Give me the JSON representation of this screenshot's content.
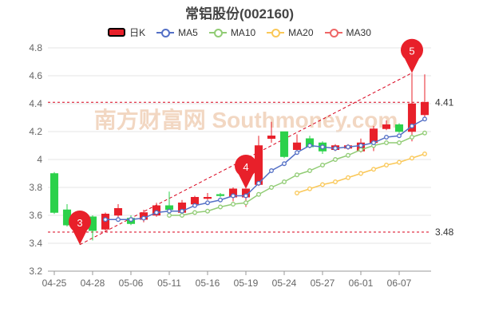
{
  "title": "常铝股份(002160)",
  "chart_data": {
    "type": "candlestick",
    "title": "常铝股份(002160)",
    "legend": [
      {
        "label": "日K",
        "color": "#e8202a"
      },
      {
        "label": "MA5",
        "color": "#5470c6"
      },
      {
        "label": "MA10",
        "color": "#91cc75"
      },
      {
        "label": "MA20",
        "color": "#fac858"
      },
      {
        "label": "MA30",
        "color": "#ee6666"
      }
    ],
    "up_color": "#e8202a",
    "down_color": "#2bd14a",
    "ylim": [
      3.2,
      4.8
    ],
    "yticks": [
      3.2,
      3.4,
      3.6,
      3.8,
      4,
      4.2,
      4.4,
      4.6,
      4.8
    ],
    "xtick_labels": [
      {
        "i": 0,
        "label": "04-25"
      },
      {
        "i": 3,
        "label": "04-28"
      },
      {
        "i": 6,
        "label": "05-06"
      },
      {
        "i": 9,
        "label": "05-11"
      },
      {
        "i": 12,
        "label": "05-16"
      },
      {
        "i": 15,
        "label": "05-19"
      },
      {
        "i": 18,
        "label": "05-24"
      },
      {
        "i": 21,
        "label": "05-27"
      },
      {
        "i": 24,
        "label": "06-01"
      },
      {
        "i": 27,
        "label": "06-07"
      }
    ],
    "candles": [
      {
        "o": 3.9,
        "c": 3.62,
        "h": 3.91,
        "l": 3.61
      },
      {
        "o": 3.64,
        "c": 3.53,
        "h": 3.68,
        "l": 3.52
      },
      {
        "o": 3.56,
        "c": 3.52,
        "h": 3.61,
        "l": 3.39
      },
      {
        "o": 3.59,
        "c": 3.49,
        "h": 3.6,
        "l": 3.42
      },
      {
        "o": 3.5,
        "c": 3.61,
        "h": 3.62,
        "l": 3.49
      },
      {
        "o": 3.6,
        "c": 3.65,
        "h": 3.68,
        "l": 3.58
      },
      {
        "o": 3.58,
        "c": 3.54,
        "h": 3.6,
        "l": 3.53
      },
      {
        "o": 3.57,
        "c": 3.62,
        "h": 3.64,
        "l": 3.55
      },
      {
        "o": 3.6,
        "c": 3.67,
        "h": 3.69,
        "l": 3.59
      },
      {
        "o": 3.67,
        "c": 3.64,
        "h": 3.77,
        "l": 3.63
      },
      {
        "o": 3.62,
        "c": 3.69,
        "h": 3.71,
        "l": 3.61
      },
      {
        "o": 3.68,
        "c": 3.73,
        "h": 3.74,
        "l": 3.67
      },
      {
        "o": 3.72,
        "c": 3.73,
        "h": 3.76,
        "l": 3.71
      },
      {
        "o": 3.75,
        "c": 3.74,
        "h": 3.76,
        "l": 3.73
      },
      {
        "o": 3.73,
        "c": 3.79,
        "h": 3.8,
        "l": 3.7
      },
      {
        "o": 3.73,
        "c": 3.79,
        "h": 3.79,
        "l": 3.66
      },
      {
        "o": 3.82,
        "c": 4.1,
        "h": 4.17,
        "l": 3.81
      },
      {
        "o": 4.15,
        "c": 4.17,
        "h": 4.27,
        "l": 4.12
      },
      {
        "o": 4.2,
        "c": 4.02,
        "h": 4.2,
        "l": 4.01
      },
      {
        "o": 4.07,
        "c": 4.12,
        "h": 4.18,
        "l": 4.06
      },
      {
        "o": 4.15,
        "c": 4.09,
        "h": 4.17,
        "l": 4.08
      },
      {
        "o": 4.12,
        "c": 4.06,
        "h": 4.13,
        "l": 4.04
      },
      {
        "o": 4.07,
        "c": 4.1,
        "h": 4.11,
        "l": 4.06
      },
      {
        "o": 4.08,
        "c": 4.1,
        "h": 4.11,
        "l": 4.07
      },
      {
        "o": 4.06,
        "c": 4.12,
        "h": 4.15,
        "l": 4.05
      },
      {
        "o": 4.12,
        "c": 4.22,
        "h": 4.24,
        "l": 4.06
      },
      {
        "o": 4.22,
        "c": 4.25,
        "h": 4.28,
        "l": 4.21
      },
      {
        "o": 4.25,
        "c": 4.2,
        "h": 4.26,
        "l": 4.19
      },
      {
        "o": 4.2,
        "c": 4.4,
        "h": 4.62,
        "l": 4.13
      },
      {
        "o": 4.32,
        "c": 4.41,
        "h": 4.61,
        "l": 4.3
      }
    ],
    "ma5": [
      null,
      null,
      null,
      null,
      3.57,
      3.57,
      3.57,
      3.58,
      3.62,
      3.63,
      3.63,
      3.67,
      3.69,
      3.71,
      3.74,
      3.74,
      3.83,
      3.92,
      3.97,
      4.05,
      4.1,
      4.09,
      4.08,
      4.09,
      4.1,
      4.12,
      4.16,
      4.17,
      4.24,
      4.29
    ],
    "ma10": [
      null,
      null,
      null,
      null,
      null,
      null,
      null,
      null,
      null,
      3.6,
      3.6,
      3.62,
      3.63,
      3.66,
      3.68,
      3.69,
      3.75,
      3.8,
      3.84,
      3.89,
      3.92,
      3.96,
      4.0,
      4.03,
      4.07,
      4.1,
      4.12,
      4.12,
      4.16,
      4.19
    ],
    "ma20": [
      null,
      null,
      null,
      null,
      null,
      null,
      null,
      null,
      null,
      null,
      null,
      null,
      null,
      null,
      null,
      null,
      null,
      null,
      null,
      3.76,
      3.79,
      3.82,
      3.84,
      3.87,
      3.9,
      3.93,
      3.96,
      3.98,
      4.01,
      4.04
    ],
    "markers": [
      {
        "label": "3",
        "i": 2,
        "value": 3.39
      },
      {
        "label": "4",
        "i": 15,
        "value": 3.79
      },
      {
        "label": "5",
        "i": 28,
        "value": 4.62
      }
    ],
    "ref_lines": [
      {
        "value": 4.41,
        "label": "4.41"
      },
      {
        "value": 3.48,
        "label": "3.48"
      }
    ],
    "trend_line": {
      "from": {
        "i": 2,
        "value": 3.39
      },
      "to": {
        "i": 28,
        "value": 4.62
      }
    },
    "watermark": "南方财富网 Southmoney.com"
  }
}
